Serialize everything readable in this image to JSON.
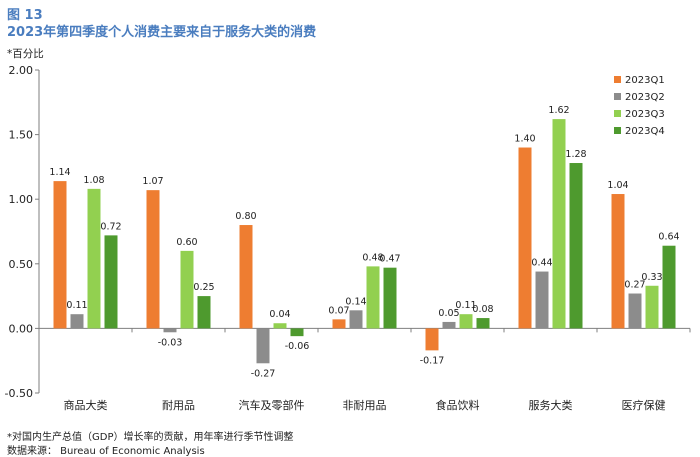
{
  "header": {
    "figure_label": "图 13",
    "title": "2023年第四季度个人消费主要来自于服务大类的消费",
    "unit": "*百分比"
  },
  "footer": {
    "note": "*对国内生产总值（GDP）增长率的贡献，用年率进行季节性调整",
    "source": "数据来源： Bureau of Economic Analysis"
  },
  "chart_data": {
    "type": "bar",
    "categories": [
      "商品大类",
      "耐用品",
      "汽车及零部件",
      "非耐用品",
      "食品饮料",
      "服务大类",
      "医疗保健"
    ],
    "series": [
      {
        "name": "2023Q1",
        "color": "#ee7d31",
        "values": [
          1.14,
          1.07,
          0.8,
          0.07,
          -0.17,
          1.4,
          1.04
        ]
      },
      {
        "name": "2023Q2",
        "color": "#8c8c8c",
        "values": [
          0.11,
          -0.03,
          -0.27,
          0.14,
          0.05,
          0.44,
          0.27
        ]
      },
      {
        "name": "2023Q3",
        "color": "#92d050",
        "values": [
          1.08,
          0.6,
          0.04,
          0.48,
          0.11,
          1.62,
          0.33
        ]
      },
      {
        "name": "2023Q4",
        "color": "#4e9a2e",
        "values": [
          0.72,
          0.25,
          -0.06,
          0.47,
          0.08,
          1.28,
          0.64
        ]
      }
    ],
    "value_labels": [
      [
        "1.14",
        "1.07",
        "0.80",
        "0.07",
        "-0.17",
        "1.40",
        "1.04"
      ],
      [
        "0.11",
        "-0.03",
        "-0.27",
        "0.14",
        "0.05",
        "0.44",
        "0.27"
      ],
      [
        "1.08",
        "0.60",
        "0.04",
        "0.48",
        "0.11",
        "1.62",
        "0.33"
      ],
      [
        "0.72",
        "0.25",
        "-0.06",
        "0.47",
        "0.08",
        "1.28",
        "0.64"
      ]
    ],
    "ylim": [
      -0.5,
      2.0
    ],
    "yticks": [
      -0.5,
      0.0,
      0.5,
      1.0,
      1.5,
      2.0
    ],
    "ytick_labels": [
      "-0.50",
      "0.00",
      "0.50",
      "1.00",
      "1.50",
      "2.00"
    ],
    "legend_position": "top-right",
    "grid": false
  }
}
